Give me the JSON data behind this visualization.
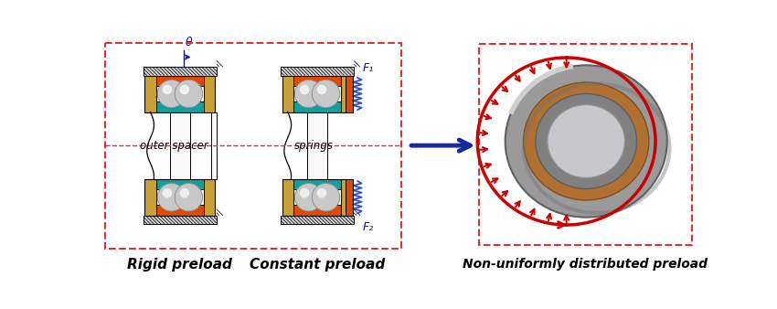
{
  "fig_width": 8.5,
  "fig_height": 3.38,
  "dpi": 100,
  "bg_color": "#ffffff",
  "dashed_box_color": "#e03030",
  "labels": {
    "rigid": "Rigid preload",
    "constant": "Constant preload",
    "nonuniform": "Non-uniformly distributed preload",
    "outer_spacer": "outer spacer",
    "springs": "springs",
    "theta": "θ",
    "F1": "F₁",
    "F2": "F₂"
  },
  "colors": {
    "gold": "#c8a035",
    "orange": "#e04a00",
    "teal": "#10a0a0",
    "ball_gray": "#c0c0c0",
    "ball_shine": "#f0f0f0",
    "black": "#000000",
    "blue_arrow": "#1a2a9a",
    "red_arrow": "#cc0000",
    "spring_blue": "#3050d0",
    "theta_blue": "#1010cc",
    "label_blue": "#1010cc",
    "hatch": "#aaaaaa",
    "white": "#ffffff",
    "shaft_white": "#f8f8f8"
  }
}
